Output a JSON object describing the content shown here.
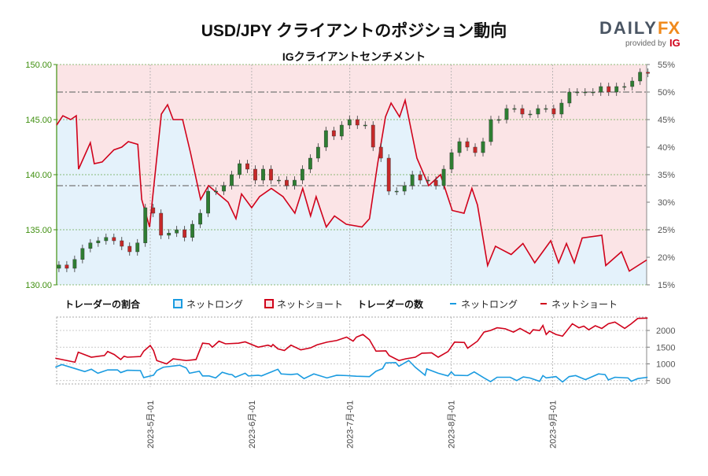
{
  "header": {
    "title": "USD/JPY クライアントのポジション動向",
    "logo_text": "DAILYFX",
    "logo_sub": "provided by",
    "logo_ig": "IG"
  },
  "colors": {
    "long": "#1a9be0",
    "short": "#d0021b",
    "up": "#2e7d32",
    "down": "#c62828",
    "pink": "#fbe4e6",
    "blue": "#e4f2fb",
    "axis_green": "#3f8f0f"
  },
  "chart_data": [
    {
      "type": "candlestick+area",
      "title": "IGクライアントセンチメント",
      "x_unit": "days since 2023-05-01",
      "xlim": [
        -28.6,
        151.7
      ],
      "x_ticks": [
        {
          "d": 0,
          "label": "2023-5月-01"
        },
        {
          "d": 31,
          "label": "2023-6月-01"
        },
        {
          "d": 61,
          "label": "2023-7月-01"
        },
        {
          "d": 92,
          "label": "2023-8月-01"
        },
        {
          "d": 123,
          "label": "2023-9月-01"
        }
      ],
      "left_axis": {
        "ylim": [
          130,
          150
        ],
        "ticks": [
          "130.00",
          "135.00",
          "140.00",
          "145.00",
          "150.00"
        ]
      },
      "right_axis": {
        "ylim": [
          15,
          55
        ],
        "ticks": [
          "15%",
          "20%",
          "25%",
          "30%",
          "35%",
          "40%",
          "45%",
          "50%",
          "55%"
        ]
      },
      "reference_levels": [
        147.5,
        139
      ],
      "price": {
        "start_day": -27.9,
        "step_days": 2.4,
        "closes": [
          131.8,
          131.5,
          132.3,
          133.3,
          133.8,
          134,
          134.3,
          134,
          133.5,
          133,
          133.8,
          137,
          136.5,
          134.5,
          134.7,
          135,
          134.3,
          135.5,
          136.5,
          138.5,
          138.5,
          139,
          140,
          141,
          140.5,
          139.5,
          140.5,
          139.5,
          139.5,
          139,
          139.5,
          140.5,
          141.5,
          142.5,
          144,
          143.5,
          144.5,
          145,
          144.5,
          144.5,
          142.5,
          141.5,
          138.5,
          138.5,
          139,
          140,
          139.5,
          139.5,
          139,
          140.5,
          142,
          143,
          142.5,
          142,
          143,
          145,
          145,
          146,
          146,
          145.5,
          145.5,
          146,
          146,
          145.5,
          146.5,
          147.5,
          147.5,
          147.5,
          147.5,
          148,
          147.5,
          148,
          148,
          148.5,
          149.3,
          149.2
        ]
      },
      "net_long_pct": [
        [
          -28.6,
          44
        ],
        [
          -26.7,
          45.7
        ],
        [
          -24.3,
          45
        ],
        [
          -22.6,
          45.7
        ],
        [
          -21.9,
          36
        ],
        [
          -18.3,
          40.8
        ],
        [
          -17.1,
          37
        ],
        [
          -14.7,
          37.3
        ],
        [
          -11.1,
          39.5
        ],
        [
          -8.7,
          40
        ],
        [
          -6.7,
          41
        ],
        [
          -3.8,
          40.5
        ],
        [
          -2.6,
          30.5
        ],
        [
          -0.2,
          25.5
        ],
        [
          3.4,
          46
        ],
        [
          5.3,
          47.7
        ],
        [
          7,
          45
        ],
        [
          9.9,
          45
        ],
        [
          12.3,
          39
        ],
        [
          15.4,
          30.5
        ],
        [
          17.8,
          33
        ],
        [
          23.8,
          30
        ],
        [
          26.2,
          27
        ],
        [
          27.9,
          31.5
        ],
        [
          31,
          29
        ],
        [
          33.4,
          31
        ],
        [
          37,
          32.5
        ],
        [
          40.6,
          31
        ],
        [
          44.2,
          28
        ],
        [
          46.6,
          32.5
        ],
        [
          49,
          27.5
        ],
        [
          50.7,
          31
        ],
        [
          53.8,
          25.5
        ],
        [
          56.3,
          27.5
        ],
        [
          59.9,
          26
        ],
        [
          64.7,
          25.5
        ],
        [
          67,
          27
        ],
        [
          69.5,
          37
        ],
        [
          71.9,
          45.5
        ],
        [
          73.6,
          48
        ],
        [
          76.2,
          45.5
        ],
        [
          77.9,
          48.5
        ],
        [
          81.5,
          38
        ],
        [
          85.1,
          33
        ],
        [
          88.7,
          35
        ],
        [
          92.3,
          28.5
        ],
        [
          95.9,
          28
        ],
        [
          98.3,
          32.5
        ],
        [
          100,
          29.5
        ],
        [
          103.1,
          18.5
        ],
        [
          105.5,
          22
        ],
        [
          110.3,
          20.5
        ],
        [
          113.9,
          22.5
        ],
        [
          117.5,
          19
        ],
        [
          122.4,
          23
        ],
        [
          124.8,
          19
        ],
        [
          127.2,
          22.5
        ],
        [
          129.6,
          19
        ],
        [
          132,
          23.5
        ],
        [
          138,
          24
        ],
        [
          139.2,
          18.5
        ],
        [
          144,
          21
        ],
        [
          146.4,
          17.5
        ],
        [
          151.7,
          19.5
        ]
      ]
    },
    {
      "type": "line",
      "title": "トレーダーの数",
      "x_unit": "days since 2023-05-01",
      "ylim": [
        400,
        2400
      ],
      "y_ticks": [
        "500",
        "1000",
        "1500",
        "2000"
      ],
      "series": [
        {
          "name": "ネットロング",
          "values": [
            [
              -29,
              900
            ],
            [
              -27,
              980
            ],
            [
              -23,
              860
            ],
            [
              -20,
              770
            ],
            [
              -18,
              840
            ],
            [
              -16,
              720
            ],
            [
              -13,
              820
            ],
            [
              -10,
              820
            ],
            [
              -9,
              740
            ],
            [
              -7,
              810
            ],
            [
              -3,
              800
            ],
            [
              -2,
              590
            ],
            [
              1,
              660
            ],
            [
              2,
              800
            ],
            [
              4,
              900
            ],
            [
              9,
              960
            ],
            [
              11,
              880
            ],
            [
              12,
              720
            ],
            [
              15,
              780
            ],
            [
              16,
              640
            ],
            [
              18,
              640
            ],
            [
              20,
              580
            ],
            [
              22,
              750
            ],
            [
              24,
              690
            ],
            [
              25,
              680
            ],
            [
              26,
              600
            ],
            [
              29,
              720
            ],
            [
              30,
              640
            ],
            [
              33,
              660
            ],
            [
              34,
              640
            ],
            [
              36,
              720
            ],
            [
              37,
              760
            ],
            [
              39,
              840
            ],
            [
              40,
              700
            ],
            [
              43,
              680
            ],
            [
              45,
              700
            ],
            [
              47,
              560
            ],
            [
              50,
              700
            ],
            [
              54,
              580
            ],
            [
              57,
              660
            ],
            [
              60,
              650
            ],
            [
              63,
              630
            ],
            [
              67,
              620
            ],
            [
              69,
              780
            ],
            [
              71,
              860
            ],
            [
              72,
              1030
            ],
            [
              75,
              1040
            ],
            [
              76,
              930
            ],
            [
              79,
              1100
            ],
            [
              80,
              1000
            ],
            [
              81,
              900
            ],
            [
              84,
              660
            ],
            [
              84.5,
              850
            ],
            [
              88,
              720
            ],
            [
              91,
              640
            ],
            [
              92,
              760
            ],
            [
              93,
              660
            ],
            [
              97,
              650
            ],
            [
              99,
              760
            ],
            [
              102,
              580
            ],
            [
              104,
              470
            ],
            [
              106,
              600
            ],
            [
              110,
              600
            ],
            [
              112,
              500
            ],
            [
              114,
              610
            ],
            [
              116,
              580
            ],
            [
              119,
              480
            ],
            [
              120,
              650
            ],
            [
              121,
              580
            ],
            [
              124,
              620
            ],
            [
              126,
              460
            ],
            [
              128,
              620
            ],
            [
              130,
              650
            ],
            [
              133,
              530
            ],
            [
              137,
              700
            ],
            [
              139,
              680
            ],
            [
              140,
              520
            ],
            [
              142,
              600
            ],
            [
              146,
              580
            ],
            [
              147,
              480
            ],
            [
              149,
              560
            ],
            [
              152,
              600
            ]
          ]
        },
        {
          "name": "ネットショート",
          "values": [
            [
              -29,
              1170
            ],
            [
              -23,
              1050
            ],
            [
              -22,
              1350
            ],
            [
              -18,
              1200
            ],
            [
              -14,
              1250
            ],
            [
              -13,
              1370
            ],
            [
              -11,
              1280
            ],
            [
              -9,
              1130
            ],
            [
              -8,
              1230
            ],
            [
              -7,
              1200
            ],
            [
              -3,
              1220
            ],
            [
              -2,
              1380
            ],
            [
              0,
              1550
            ],
            [
              1,
              1400
            ],
            [
              2,
              1100
            ],
            [
              5,
              1000
            ],
            [
              7,
              1150
            ],
            [
              11,
              1100
            ],
            [
              14,
              1130
            ],
            [
              16,
              1620
            ],
            [
              18,
              1600
            ],
            [
              19,
              1500
            ],
            [
              21,
              1680
            ],
            [
              23,
              1600
            ],
            [
              27,
              1620
            ],
            [
              29,
              1660
            ],
            [
              33,
              1500
            ],
            [
              36,
              1560
            ],
            [
              37,
              1520
            ],
            [
              37.5,
              1580
            ],
            [
              39,
              1450
            ],
            [
              41,
              1400
            ],
            [
              43,
              1560
            ],
            [
              46,
              1420
            ],
            [
              49,
              1480
            ],
            [
              51,
              1570
            ],
            [
              54,
              1650
            ],
            [
              57,
              1700
            ],
            [
              60,
              1800
            ],
            [
              62,
              1680
            ],
            [
              63,
              1800
            ],
            [
              65,
              1880
            ],
            [
              67,
              1720
            ],
            [
              69,
              1380
            ],
            [
              72,
              1390
            ],
            [
              73,
              1250
            ],
            [
              76,
              1100
            ],
            [
              78,
              1150
            ],
            [
              81,
              1200
            ],
            [
              83,
              1320
            ],
            [
              86,
              1330
            ],
            [
              88,
              1200
            ],
            [
              91,
              1370
            ],
            [
              93,
              1650
            ],
            [
              96,
              1640
            ],
            [
              97,
              1470
            ],
            [
              100,
              1680
            ],
            [
              102,
              1950
            ],
            [
              104,
              2000
            ],
            [
              106,
              2080
            ],
            [
              108.5,
              2050
            ],
            [
              111,
              1950
            ],
            [
              113,
              2060
            ],
            [
              116,
              1900
            ],
            [
              117,
              2020
            ],
            [
              119,
              2000
            ],
            [
              120,
              2150
            ],
            [
              121,
              1880
            ],
            [
              122,
              1980
            ],
            [
              124,
              1880
            ],
            [
              126,
              1830
            ],
            [
              129,
              2200
            ],
            [
              131,
              2080
            ],
            [
              132.5,
              2130
            ],
            [
              134,
              2020
            ],
            [
              136,
              2140
            ],
            [
              138,
              2060
            ],
            [
              140,
              2200
            ],
            [
              142,
              2250
            ],
            [
              145,
              2060
            ],
            [
              147,
              2200
            ],
            [
              149,
              2360
            ],
            [
              152,
              2370
            ]
          ]
        }
      ]
    }
  ],
  "legend": {
    "ratio_title": "トレーダーの割合",
    "ratio_long": "ネットロング",
    "ratio_short": "ネットショート",
    "count_title": "トレーダーの数",
    "count_long": "ネットロング",
    "count_short": "ネットショート"
  }
}
